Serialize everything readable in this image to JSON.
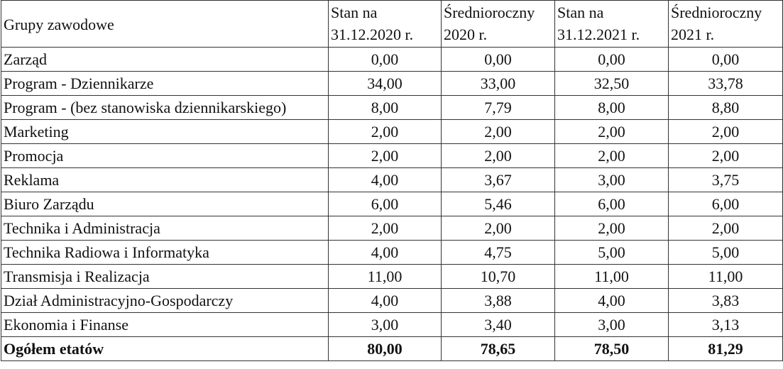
{
  "table": {
    "header": [
      "Grupy zawodowe",
      "Stan na 31.12.2020 r.",
      "Średnioroczny 2020 r.",
      "Stan na 31.12.2021 r.",
      "Średnioroczny 2021 r."
    ],
    "rows": [
      [
        "Zarząd",
        "0,00",
        "0,00",
        "0,00",
        "0,00"
      ],
      [
        "Program - Dziennikarze",
        "34,00",
        "33,00",
        "32,50",
        "33,78"
      ],
      [
        "Program - (bez stanowiska dziennikarskiego)",
        "8,00",
        "7,79",
        "8,00",
        "8,80"
      ],
      [
        "Marketing",
        "2,00",
        "2,00",
        "2,00",
        "2,00"
      ],
      [
        "Promocja",
        "2,00",
        "2,00",
        "2,00",
        "2,00"
      ],
      [
        "Reklama",
        "4,00",
        "3,67",
        "3,00",
        "3,75"
      ],
      [
        "Biuro Zarządu",
        "6,00",
        "5,46",
        "6,00",
        "6,00"
      ],
      [
        "Technika i Administracja",
        "2,00",
        "2,00",
        "2,00",
        "2,00"
      ],
      [
        "Technika Radiowa i Informatyka",
        "4,00",
        "4,75",
        "5,00",
        "5,00"
      ],
      [
        "Transmisja i Realizacja",
        "11,00",
        "10,70",
        "11,00",
        "11,00"
      ],
      [
        "Dział Administracyjno-Gospodarczy",
        "4,00",
        "3,88",
        "4,00",
        "3,83"
      ],
      [
        "Ekonomia i Finanse",
        "3,00",
        "3,40",
        "3,00",
        "3,13"
      ]
    ],
    "total": [
      "Ogółem etatów",
      "80,00",
      "78,65",
      "78,50",
      "81,29"
    ]
  }
}
